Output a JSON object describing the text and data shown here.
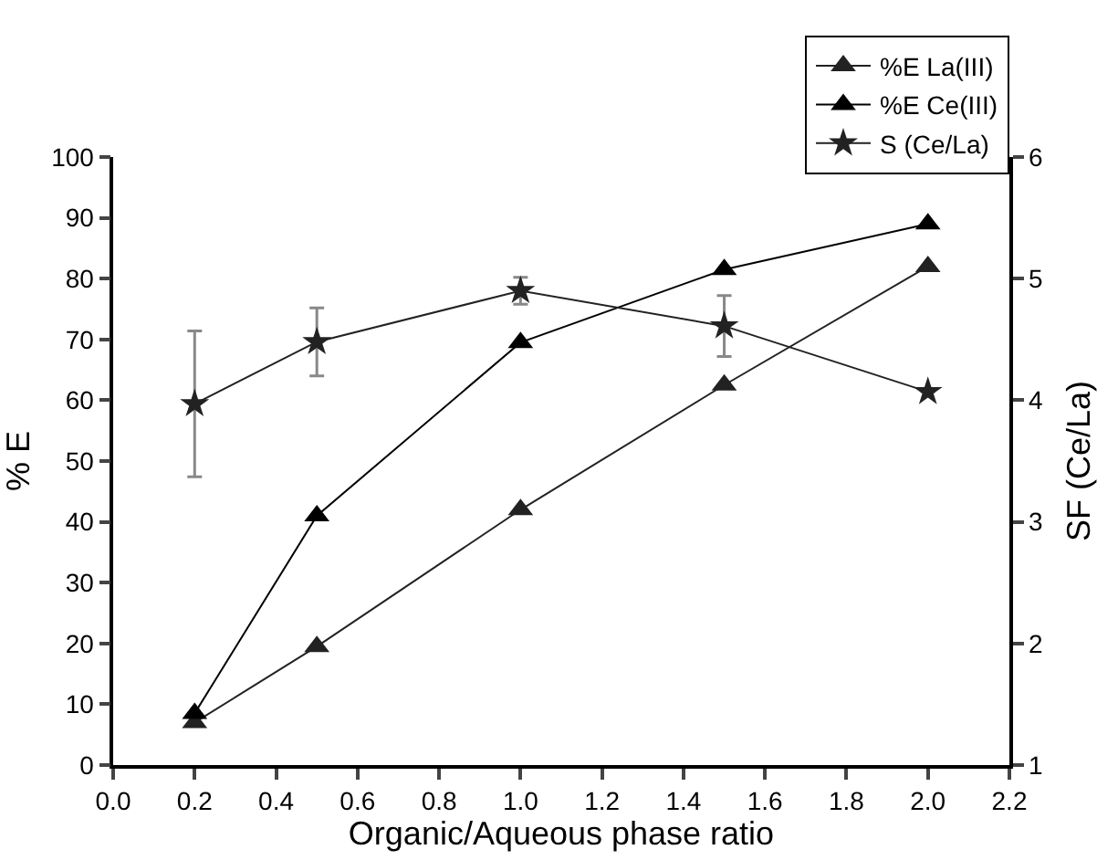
{
  "chart_data": {
    "type": "line",
    "xlabel": "Organic/Aqueous phase ratio",
    "ylabel": "% E",
    "y2label": "SF (Ce/La)",
    "x": [
      0.2,
      0.5,
      1.0,
      1.5,
      2.0
    ],
    "xlim": [
      0,
      2.2
    ],
    "xticks": [
      {
        "value": 0,
        "label": "0.0"
      },
      0.2,
      0.4,
      0.6,
      0.8,
      {
        "value": 1,
        "label": "1.0"
      },
      1.2,
      1.4,
      1.6,
      1.8,
      {
        "value": 2,
        "label": "2.0"
      },
      2.2
    ],
    "ylim": [
      0,
      100
    ],
    "yticks": [
      0,
      10,
      20,
      30,
      40,
      50,
      60,
      70,
      80,
      90,
      100
    ],
    "y2lim": [
      1,
      6
    ],
    "y2ticks": [
      1,
      2,
      3,
      4,
      5,
      6
    ],
    "grid": false,
    "legend": "top right",
    "line_style": "solid",
    "series": [
      {
        "name": "%E La(III)",
        "color": "#222222",
        "marker": "triangle",
        "values": [
          7,
          19.5,
          42,
          62.5,
          82
        ]
      },
      {
        "name": "%E Ce(III)",
        "color": "#000000",
        "marker": "triangle",
        "values": [
          8.5,
          41,
          69.5,
          81.5,
          89
        ]
      },
      {
        "name": "S (Ce/La)",
        "color": "#222222",
        "marker": "star",
        "axis": "y2",
        "values": [
          3.97,
          4.48,
          4.9,
          4.61,
          4.07
        ],
        "errors": [
          0.6,
          0.28,
          0.11,
          0.25,
          null
        ]
      }
    ]
  }
}
